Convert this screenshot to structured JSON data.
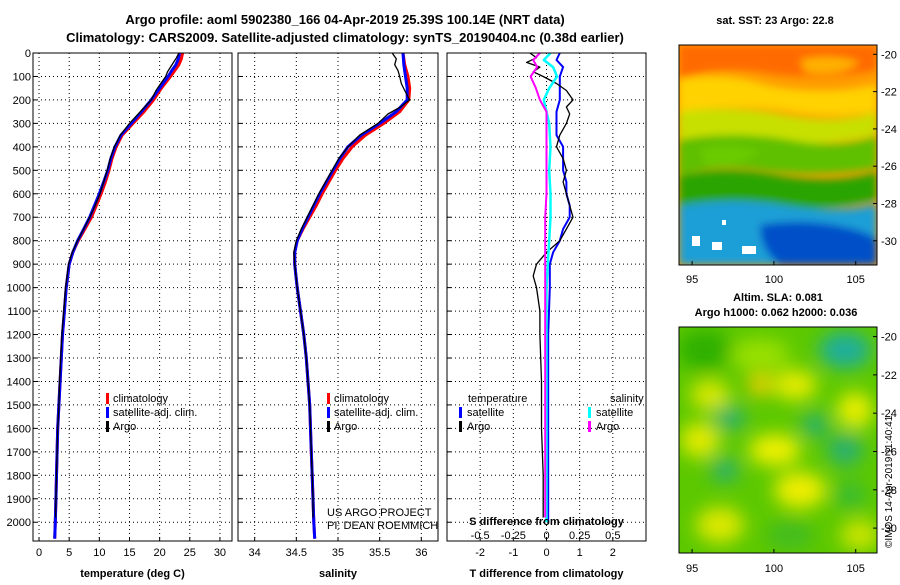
{
  "title": {
    "line1": "Argo profile: aoml 5902380_166 04-Apr-2019 25.39S 100.14E (NRT data)",
    "line2": "Climatology: CARS2009. Satellite-adjusted climatology: synTS_20190404.nc (0.38d earlier)"
  },
  "colors": {
    "climatology": "#ff0000",
    "satellite": "#0000ff",
    "argo": "#000000",
    "sat_s": "#00ffff",
    "argo_s": "#ff00ff"
  },
  "depth_ticks": [
    "0",
    "100",
    "200",
    "300",
    "400",
    "500",
    "600",
    "700",
    "800",
    "900",
    "1000",
    "1100",
    "1200",
    "1300",
    "1400",
    "1500",
    "1600",
    "1700",
    "1800",
    "1900",
    "2000"
  ],
  "legend": {
    "climatology": "climatology",
    "satellite": "satellite-adj. clim.",
    "argo": "Argo"
  },
  "diff_legend": {
    "temperature": "temperature",
    "salinity": "salinity",
    "satellite": "satellite",
    "argo": "Argo"
  },
  "credit": {
    "line1": "US ARGO PROJECT",
    "line2": "PI: DEAN ROEMMICH"
  },
  "maps": {
    "sst_title": "sat. SST: 23 Argo: 22.8",
    "sla_title1": "Altim. SLA: 0.081",
    "sla_title2": "Argo h1000: 0.062 h2000: 0.036",
    "lon_ticks": [
      "95",
      "100",
      "105"
    ],
    "lat_ticks": [
      "-20",
      "-22",
      "-24",
      "-26",
      "-28",
      "-30"
    ]
  },
  "watermark": "©IMOS 14-Apr-2019 11:40:41",
  "chart_data": [
    {
      "type": "line",
      "name": "temperature",
      "xlabel": "temperature (deg C)",
      "ylabel": "depth",
      "xlim": [
        -1,
        32
      ],
      "ylim": [
        2080,
        0
      ],
      "xticks": [
        "0",
        "5",
        "10",
        "15",
        "20",
        "25",
        "30"
      ],
      "series": [
        {
          "name": "climatology",
          "depth": [
            0,
            25,
            50,
            75,
            100,
            150,
            200,
            250,
            300,
            350,
            400,
            450,
            500,
            550,
            600,
            650,
            700,
            750,
            800,
            850,
            900,
            1000,
            1100,
            1200,
            1300,
            1400,
            1500,
            1600,
            1700,
            1800,
            1900,
            2000,
            2070
          ],
          "values": [
            23.8,
            23.6,
            23.2,
            22.5,
            21.8,
            20.3,
            19.0,
            17.4,
            15.6,
            13.8,
            12.8,
            12.1,
            11.6,
            11.0,
            10.3,
            9.5,
            8.7,
            7.6,
            6.5,
            5.6,
            5.0,
            4.5,
            4.2,
            3.9,
            3.7,
            3.5,
            3.3,
            3.1,
            3.0,
            2.9,
            2.8,
            2.7,
            2.6
          ]
        },
        {
          "name": "satellite-adj. clim.",
          "depth": [
            0,
            25,
            50,
            75,
            100,
            150,
            200,
            250,
            300,
            350,
            400,
            450,
            500,
            550,
            600,
            650,
            700,
            750,
            800,
            850,
            900,
            1000,
            1100,
            1200,
            1300,
            1400,
            1500,
            1600,
            1700,
            1800,
            1900,
            2000,
            2070
          ],
          "values": [
            23.3,
            23.1,
            22.7,
            22.0,
            21.4,
            20.0,
            18.6,
            17.0,
            15.3,
            13.6,
            12.6,
            11.9,
            11.4,
            10.7,
            10.0,
            9.2,
            8.4,
            7.4,
            6.4,
            5.6,
            5.0,
            4.5,
            4.2,
            3.9,
            3.7,
            3.5,
            3.3,
            3.1,
            3.0,
            2.9,
            2.8,
            2.7,
            2.6
          ]
        },
        {
          "name": "Argo",
          "depth": [
            0,
            20,
            40,
            60,
            80,
            100,
            130,
            160,
            200,
            250,
            300,
            350,
            400,
            450,
            500,
            550,
            600,
            650,
            700,
            750,
            800,
            850,
            900,
            1000,
            1100,
            1200,
            1300,
            1400,
            1500,
            1600,
            1700,
            1800,
            1900,
            1980
          ],
          "values": [
            23.2,
            22.8,
            22.3,
            21.8,
            21.3,
            21.0,
            20.2,
            19.4,
            18.6,
            16.8,
            15.0,
            13.5,
            12.5,
            11.8,
            11.3,
            10.7,
            10.1,
            9.3,
            8.4,
            7.4,
            6.4,
            5.5,
            4.9,
            4.4,
            4.1,
            3.8,
            3.6,
            3.4,
            3.3,
            3.1,
            3.0,
            2.9,
            2.8,
            2.75
          ]
        }
      ]
    },
    {
      "type": "line",
      "name": "salinity",
      "xlabel": "salinity",
      "ylabel": "depth",
      "xlim": [
        33.8,
        36.2
      ],
      "ylim": [
        2080,
        0
      ],
      "xticks": [
        "34",
        "34.5",
        "35",
        "35.5",
        "36"
      ],
      "series": [
        {
          "name": "climatology",
          "depth": [
            0,
            50,
            100,
            150,
            200,
            250,
            300,
            350,
            400,
            450,
            500,
            550,
            600,
            650,
            700,
            750,
            800,
            850,
            900,
            1000,
            1100,
            1200,
            1300,
            1400,
            1500,
            1600,
            1700,
            1800,
            1900,
            2000,
            2070
          ],
          "values": [
            35.78,
            35.8,
            35.84,
            35.86,
            35.85,
            35.74,
            35.55,
            35.33,
            35.17,
            35.06,
            34.97,
            34.89,
            34.81,
            34.74,
            34.66,
            34.58,
            34.51,
            34.48,
            34.48,
            34.51,
            34.55,
            34.59,
            34.62,
            34.64,
            34.66,
            34.67,
            34.68,
            34.69,
            34.7,
            34.71,
            34.72
          ]
        },
        {
          "name": "satellite-adj. clim.",
          "depth": [
            0,
            50,
            100,
            150,
            200,
            250,
            300,
            350,
            400,
            450,
            500,
            550,
            600,
            650,
            700,
            750,
            800,
            850,
            900,
            1000,
            1100,
            1200,
            1300,
            1400,
            1500,
            1600,
            1700,
            1800,
            1900,
            2000,
            2070
          ],
          "values": [
            35.78,
            35.79,
            35.81,
            35.83,
            35.83,
            35.7,
            35.5,
            35.28,
            35.12,
            35.02,
            34.94,
            34.86,
            34.78,
            34.71,
            34.64,
            34.57,
            34.51,
            34.48,
            34.48,
            34.51,
            34.55,
            34.59,
            34.62,
            34.64,
            34.66,
            34.67,
            34.68,
            34.69,
            34.7,
            34.71,
            34.72
          ]
        },
        {
          "name": "Argo",
          "depth": [
            0,
            25,
            50,
            75,
            100,
            130,
            160,
            200,
            230,
            260,
            300,
            350,
            400,
            450,
            500,
            550,
            600,
            650,
            700,
            750,
            800,
            850,
            900,
            1000,
            1100,
            1200,
            1300,
            1400,
            1500,
            1600,
            1700,
            1800,
            1900,
            1980
          ],
          "values": [
            35.65,
            35.7,
            35.68,
            35.72,
            35.74,
            35.76,
            35.8,
            35.86,
            35.75,
            35.6,
            35.48,
            35.26,
            35.12,
            35.01,
            34.93,
            34.85,
            34.77,
            34.7,
            34.63,
            34.56,
            34.5,
            34.47,
            34.48,
            34.51,
            34.55,
            34.59,
            34.62,
            34.64,
            34.66,
            34.67,
            34.68,
            34.69,
            34.7,
            34.7
          ]
        }
      ]
    },
    {
      "type": "line",
      "name": "difference",
      "xlabel": "T difference from climatology",
      "xlabel2": "S difference from climatology",
      "xlim": [
        -3,
        3
      ],
      "ylim": [
        2080,
        0
      ],
      "xticks": [
        "-2",
        "-1",
        "0",
        "1",
        "2"
      ],
      "xticks_s": [
        "-0.5",
        "-0.25",
        "0",
        "0.25",
        "0.5"
      ],
      "series": [
        {
          "name": "temperature satellite",
          "depth": [
            0,
            30,
            60,
            100,
            150,
            200,
            250,
            300,
            350,
            400,
            450,
            500,
            550,
            600,
            650,
            700,
            750,
            800,
            850,
            900,
            1000,
            1200,
            1400,
            1600,
            1800,
            2000
          ],
          "values": [
            0.4,
            0.3,
            0.5,
            0.4,
            0.4,
            0.4,
            0.3,
            0.3,
            0.3,
            0.5,
            0.5,
            0.5,
            0.6,
            0.6,
            0.7,
            0.7,
            0.5,
            0.4,
            0.2,
            0.1,
            0.1,
            0.05,
            0.05,
            0.05,
            0.05,
            0.05
          ]
        },
        {
          "name": "temperature Argo",
          "depth": [
            0,
            20,
            40,
            60,
            80,
            100,
            130,
            160,
            200,
            230,
            260,
            300,
            350,
            400,
            450,
            500,
            550,
            600,
            650,
            700,
            750,
            800,
            850,
            900,
            950,
            1000,
            1100,
            1200,
            1400,
            1600,
            1800,
            1980
          ],
          "values": [
            -0.5,
            -0.3,
            -0.6,
            -0.2,
            -0.4,
            -0.1,
            0.3,
            0.6,
            0.8,
            0.6,
            0.7,
            0.6,
            0.4,
            0.3,
            0.5,
            0.6,
            0.5,
            0.6,
            0.7,
            0.8,
            0.6,
            0.4,
            0.0,
            -0.3,
            -0.4,
            -0.3,
            -0.2,
            -0.2,
            -0.15,
            -0.15,
            -0.1,
            -0.1
          ]
        },
        {
          "name": "salinity satellite",
          "depth": [
            0,
            30,
            60,
            100,
            150,
            200,
            250,
            300,
            400,
            500,
            600,
            700,
            800,
            900,
            1000,
            1200,
            1400,
            1600,
            1800,
            2000
          ],
          "values": [
            0.03,
            -0.02,
            0.05,
            0.08,
            0.02,
            -0.02,
            0.0,
            0.02,
            0.03,
            0.02,
            0.03,
            0.03,
            0.02,
            0.01,
            0.0,
            0.0,
            0.0,
            0.0,
            0.0,
            0.0
          ]
        },
        {
          "name": "salinity Argo",
          "depth": [
            0,
            30,
            60,
            100,
            150,
            200,
            250,
            300,
            400,
            500,
            600,
            700,
            800,
            900,
            1000,
            1200,
            1400,
            1600,
            1800,
            1980
          ],
          "values": [
            -0.05,
            -0.1,
            -0.07,
            -0.12,
            -0.08,
            -0.05,
            0.0,
            0.0,
            0.0,
            0.0,
            0.0,
            -0.01,
            -0.01,
            -0.01,
            -0.01,
            -0.01,
            -0.01,
            -0.01,
            -0.01,
            -0.01
          ]
        }
      ]
    }
  ]
}
